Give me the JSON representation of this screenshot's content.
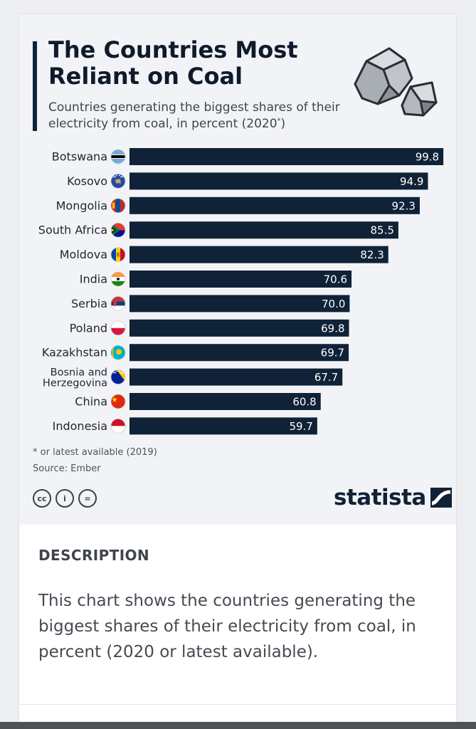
{
  "header": {
    "title": "The Countries Most Reliant on Coal",
    "subtitle": "Countries generating the biggest shares of their electricity from coal, in percent (2020",
    "subtitle_mark": "*",
    "subtitle_end": ")"
  },
  "chart_data": {
    "type": "bar",
    "orientation": "horizontal",
    "categories": [
      "Botswana",
      "Kosovo",
      "Mongolia",
      "South Africa",
      "Moldova",
      "India",
      "Serbia",
      "Poland",
      "Kazakhstan",
      "Bosnia and Herzegovina",
      "China",
      "Indonesia"
    ],
    "values": [
      99.8,
      94.9,
      92.3,
      85.5,
      82.3,
      70.6,
      70.0,
      69.8,
      69.7,
      67.7,
      60.8,
      59.7
    ],
    "value_labels": [
      "99.8",
      "94.9",
      "92.3",
      "85.5",
      "82.3",
      "70.6",
      "70.0",
      "69.8",
      "69.7",
      "67.7",
      "60.8",
      "59.7"
    ],
    "xlim": [
      0,
      100
    ],
    "grid": false,
    "bar_color": "#0f2237",
    "label_color": "#ffffff"
  },
  "footnotes": {
    "note": "* or latest available (2019)",
    "source": "Source: Ember"
  },
  "license_icons": [
    {
      "icon": "creative-commons-icon",
      "glyph": "cc"
    },
    {
      "icon": "attribution-icon",
      "glyph": "i"
    },
    {
      "icon": "no-derivatives-icon",
      "glyph": "="
    }
  ],
  "brand": {
    "logo_text": "statista"
  },
  "description": {
    "heading": "DESCRIPTION",
    "body": "This chart shows the countries generating the biggest shares of their electricity from coal, in percent (2020 or latest available)."
  },
  "colors": {
    "navy": "#0f2237",
    "background": "#f2f3f6"
  }
}
